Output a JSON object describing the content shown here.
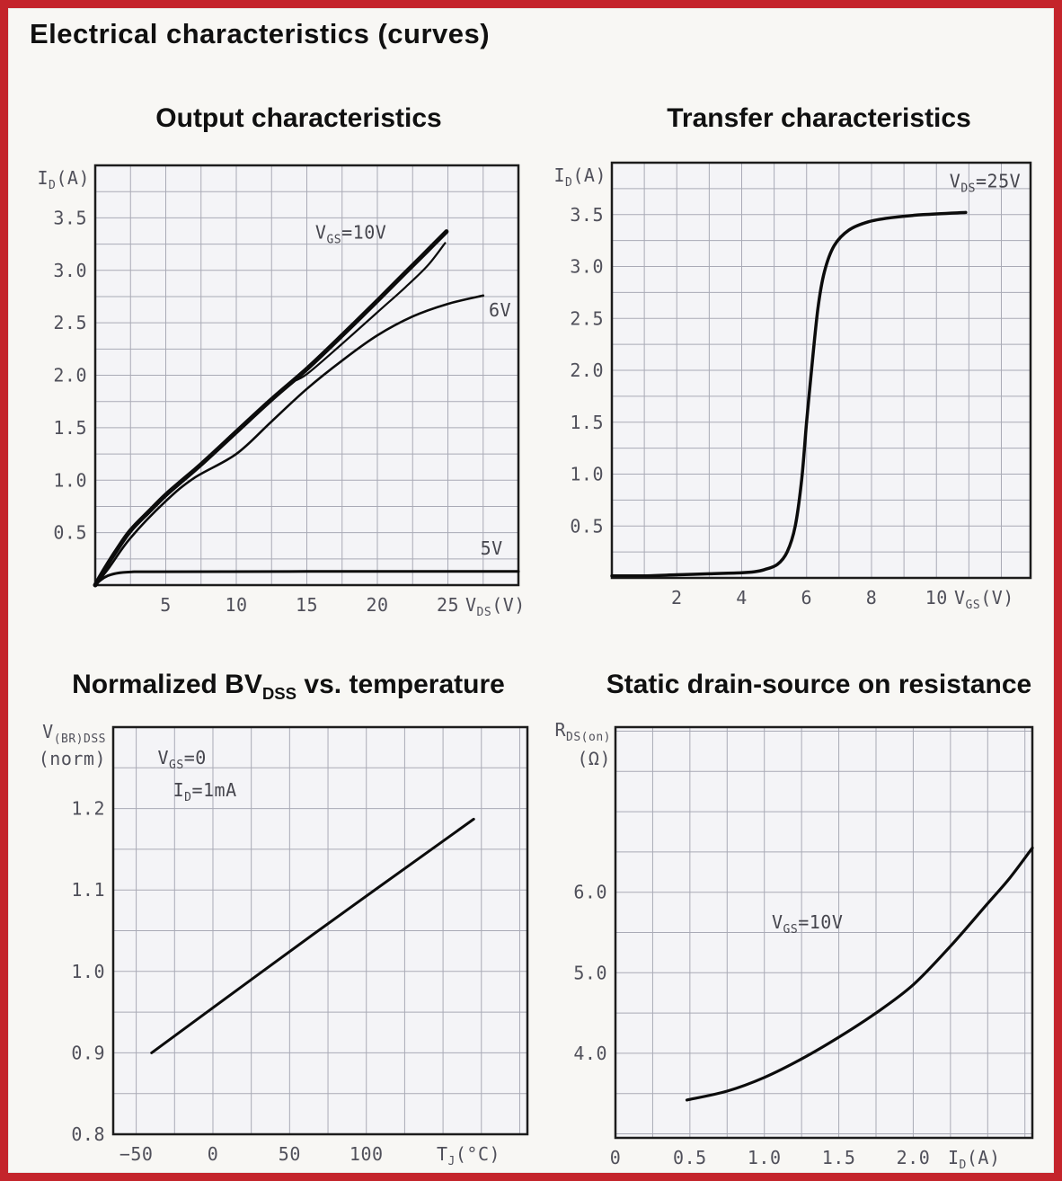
{
  "page": {
    "title": "Electrical characteristics (curves)",
    "background": "#f8f7f4",
    "border_color": "#c4242b",
    "grid_color": "#a9aab6",
    "frame_color": "#1c1c1c",
    "curve_color": "#0c0c0c",
    "tick_color": "#50505a",
    "plot_fill": "#f4f4f7"
  },
  "chart_data": [
    {
      "id": "output",
      "type": "line",
      "title_parts": [
        [
          "Output characteristics",
          0
        ]
      ],
      "xlabel_parts": [
        [
          "V",
          0
        ],
        [
          "DS",
          1
        ],
        [
          "(V)",
          0
        ]
      ],
      "ylabel_parts": [
        [
          "I",
          0
        ],
        [
          "D",
          1
        ],
        [
          "(A)",
          0
        ]
      ],
      "ylabel2_parts": null,
      "xlim": [
        0,
        30
      ],
      "ylim": [
        0,
        4
      ],
      "minor_x": 2.5,
      "minor_y": 0.25,
      "grid": true,
      "xticks": {
        "values": [
          5,
          10,
          15,
          20,
          25
        ],
        "labels": [
          "5",
          "10",
          "15",
          "20",
          "25"
        ]
      },
      "yticks": {
        "values": [
          0.5,
          1.0,
          1.5,
          2.0,
          2.5,
          3.0,
          3.5
        ],
        "labels": [
          "0.5",
          "1.0",
          "1.5",
          "2.0",
          "2.5",
          "3.0",
          "3.5"
        ]
      },
      "series": [
        {
          "name": "vgs-10v-upper",
          "width": 5,
          "points": [
            [
              0,
              0
            ],
            [
              0.7,
              0.16
            ],
            [
              1.5,
              0.33
            ],
            [
              2.5,
              0.52
            ],
            [
              3.8,
              0.7
            ],
            [
              5,
              0.86
            ],
            [
              6.2,
              1.0
            ],
            [
              7.5,
              1.15
            ],
            [
              10,
              1.46
            ],
            [
              12.5,
              1.77
            ],
            [
              15,
              2.06
            ],
            [
              17.5,
              2.38
            ],
            [
              20,
              2.71
            ],
            [
              22,
              2.98
            ],
            [
              23.5,
              3.18
            ],
            [
              24.9,
              3.37
            ]
          ]
        },
        {
          "name": "vgs-10v-lower",
          "width": 2.2,
          "points": [
            [
              14,
              1.94
            ],
            [
              15,
              2.01
            ],
            [
              17.5,
              2.3
            ],
            [
              20,
              2.6
            ],
            [
              22,
              2.84
            ],
            [
              23.6,
              3.05
            ],
            [
              24.8,
              3.26
            ]
          ]
        },
        {
          "name": "vgs-6v",
          "width": 2.6,
          "points": [
            [
              0,
              0
            ],
            [
              1,
              0.17
            ],
            [
              2.5,
              0.45
            ],
            [
              5,
              0.8
            ],
            [
              7,
              1.02
            ],
            [
              10,
              1.25
            ],
            [
              12.5,
              1.56
            ],
            [
              15,
              1.87
            ],
            [
              17.5,
              2.14
            ],
            [
              20,
              2.38
            ],
            [
              22.5,
              2.56
            ],
            [
              25,
              2.68
            ],
            [
              27.5,
              2.76
            ]
          ]
        },
        {
          "name": "vgs-5v",
          "width": 3,
          "points": [
            [
              0,
              0
            ],
            [
              0.4,
              0.05
            ],
            [
              0.9,
              0.09
            ],
            [
              1.6,
              0.115
            ],
            [
              2.5,
              0.125
            ],
            [
              4,
              0.128
            ],
            [
              15,
              0.13
            ],
            [
              30,
              0.13
            ]
          ]
        }
      ],
      "annotations": [
        {
          "parts": [
            [
              "V",
              0
            ],
            [
              "GS",
              1
            ],
            [
              "=10V",
              0
            ]
          ],
          "x": 15.6,
          "y": 3.3,
          "anchor": "start"
        },
        {
          "parts": [
            [
              "6V",
              0
            ]
          ],
          "x": 27.9,
          "y": 2.56,
          "anchor": "start"
        },
        {
          "parts": [
            [
              "5V",
              0
            ]
          ],
          "x": 27.3,
          "y": 0.29,
          "anchor": "start"
        }
      ]
    },
    {
      "id": "transfer",
      "type": "line",
      "title_parts": [
        [
          "Transfer characteristics",
          0
        ]
      ],
      "xlabel_parts": [
        [
          "V",
          0
        ],
        [
          "GS",
          1
        ],
        [
          "(V)",
          0
        ]
      ],
      "ylabel_parts": [
        [
          "I",
          0
        ],
        [
          "D",
          1
        ],
        [
          "(A)",
          0
        ]
      ],
      "ylabel2_parts": null,
      "xlim": [
        0,
        12.9
      ],
      "ylim": [
        0,
        4
      ],
      "minor_x": 1,
      "minor_y": 0.25,
      "grid": true,
      "xticks": {
        "values": [
          2,
          4,
          6,
          8,
          10
        ],
        "labels": [
          "2",
          "4",
          "6",
          "8",
          "10"
        ]
      },
      "yticks": {
        "values": [
          0.5,
          1.0,
          1.5,
          2.0,
          2.5,
          3.0,
          3.5
        ],
        "labels": [
          "0.5",
          "1.0",
          "1.5",
          "2.0",
          "2.5",
          "3.0",
          "3.5"
        ]
      },
      "series": [
        {
          "name": "id-vs-vgs",
          "width": 3.5,
          "points": [
            [
              0,
              0.02
            ],
            [
              1,
              0.02
            ],
            [
              2,
              0.03
            ],
            [
              3,
              0.04
            ],
            [
              4,
              0.05
            ],
            [
              4.4,
              0.06
            ],
            [
              4.7,
              0.08
            ],
            [
              5.1,
              0.13
            ],
            [
              5.4,
              0.25
            ],
            [
              5.65,
              0.5
            ],
            [
              5.85,
              0.95
            ],
            [
              6.0,
              1.5
            ],
            [
              6.15,
              2.0
            ],
            [
              6.35,
              2.6
            ],
            [
              6.55,
              2.95
            ],
            [
              6.85,
              3.2
            ],
            [
              7.3,
              3.35
            ],
            [
              7.9,
              3.43
            ],
            [
              8.6,
              3.47
            ],
            [
              9.6,
              3.5
            ],
            [
              10.9,
              3.52
            ]
          ]
        }
      ],
      "annotations": [
        {
          "parts": [
            [
              "V",
              0
            ],
            [
              "DS",
              1
            ],
            [
              "=25V",
              0
            ]
          ],
          "x": 12.6,
          "y": 3.76,
          "anchor": "end"
        }
      ]
    },
    {
      "id": "bvdss",
      "type": "line",
      "title_parts": [
        [
          "Normalized BV",
          0
        ],
        [
          "DSS",
          1
        ],
        [
          " vs. temperature",
          0
        ]
      ],
      "xlabel_parts": [
        [
          "T",
          0
        ],
        [
          "J",
          1
        ],
        [
          "(°C)",
          0
        ]
      ],
      "ylabel_parts": [
        [
          "V",
          0
        ],
        [
          "(BR)DSS",
          1
        ]
      ],
      "ylabel2_parts": [
        [
          "(norm)",
          0
        ]
      ],
      "xlim": [
        -65,
        205
      ],
      "ylim": [
        0.8,
        1.3
      ],
      "minor_x": 25,
      "minor_y": 0.05,
      "grid": true,
      "xticks": {
        "values": [
          -50,
          0,
          50,
          100
        ],
        "labels": [
          "−50",
          "0",
          "50",
          "100"
        ]
      },
      "yticks": {
        "values": [
          0.8,
          0.9,
          1.0,
          1.1,
          1.2
        ],
        "labels": [
          "0.8",
          "0.9",
          "1.0",
          "1.1",
          "1.2"
        ]
      },
      "series": [
        {
          "name": "bvdss-vs-tj",
          "width": 3,
          "points": [
            [
              -40,
              0.9
            ],
            [
              65,
              1.045
            ],
            [
              170,
              1.187
            ]
          ]
        }
      ],
      "annotations": [
        {
          "parts": [
            [
              "V",
              0
            ],
            [
              "GS",
              1
            ],
            [
              "=0",
              0
            ]
          ],
          "x": -36,
          "y": 1.255,
          "anchor": "start"
        },
        {
          "parts": [
            [
              "I",
              0
            ],
            [
              "D",
              1
            ],
            [
              "=1mA",
              0
            ]
          ],
          "x": -26,
          "y": 1.215,
          "anchor": "start"
        }
      ]
    },
    {
      "id": "rdson",
      "type": "line",
      "title_parts": [
        [
          "Static drain-source on resistance",
          0
        ]
      ],
      "xlabel_parts": [
        [
          "I",
          0
        ],
        [
          "D",
          1
        ],
        [
          "(A)",
          0
        ]
      ],
      "ylabel_parts": [
        [
          "R",
          0
        ],
        [
          "DS(on)",
          1
        ]
      ],
      "ylabel2_parts": [
        [
          "(Ω)",
          0
        ]
      ],
      "xlim": [
        0,
        2.8
      ],
      "ylim": [
        2.95,
        8.05
      ],
      "minor_x": 0.25,
      "minor_y": 0.5,
      "grid": true,
      "xticks": {
        "values": [
          0,
          0.5,
          1.0,
          1.5,
          2.0
        ],
        "labels": [
          "0",
          "0.5",
          "1.0",
          "1.5",
          "2.0"
        ]
      },
      "yticks": {
        "values": [
          4.0,
          5.0,
          6.0
        ],
        "labels": [
          "4.0",
          "5.0",
          "6.0"
        ]
      },
      "series": [
        {
          "name": "rdson-vs-id",
          "width": 3.2,
          "points": [
            [
              0.48,
              3.42
            ],
            [
              0.75,
              3.53
            ],
            [
              1.0,
              3.7
            ],
            [
              1.25,
              3.93
            ],
            [
              1.5,
              4.2
            ],
            [
              1.75,
              4.5
            ],
            [
              2.0,
              4.85
            ],
            [
              2.25,
              5.33
            ],
            [
              2.5,
              5.86
            ],
            [
              2.65,
              6.18
            ],
            [
              2.8,
              6.55
            ]
          ]
        }
      ],
      "annotations": [
        {
          "parts": [
            [
              "V",
              0
            ],
            [
              "GS",
              1
            ],
            [
              "=10V",
              0
            ]
          ],
          "x": 1.05,
          "y": 5.55,
          "anchor": "start"
        }
      ]
    }
  ]
}
